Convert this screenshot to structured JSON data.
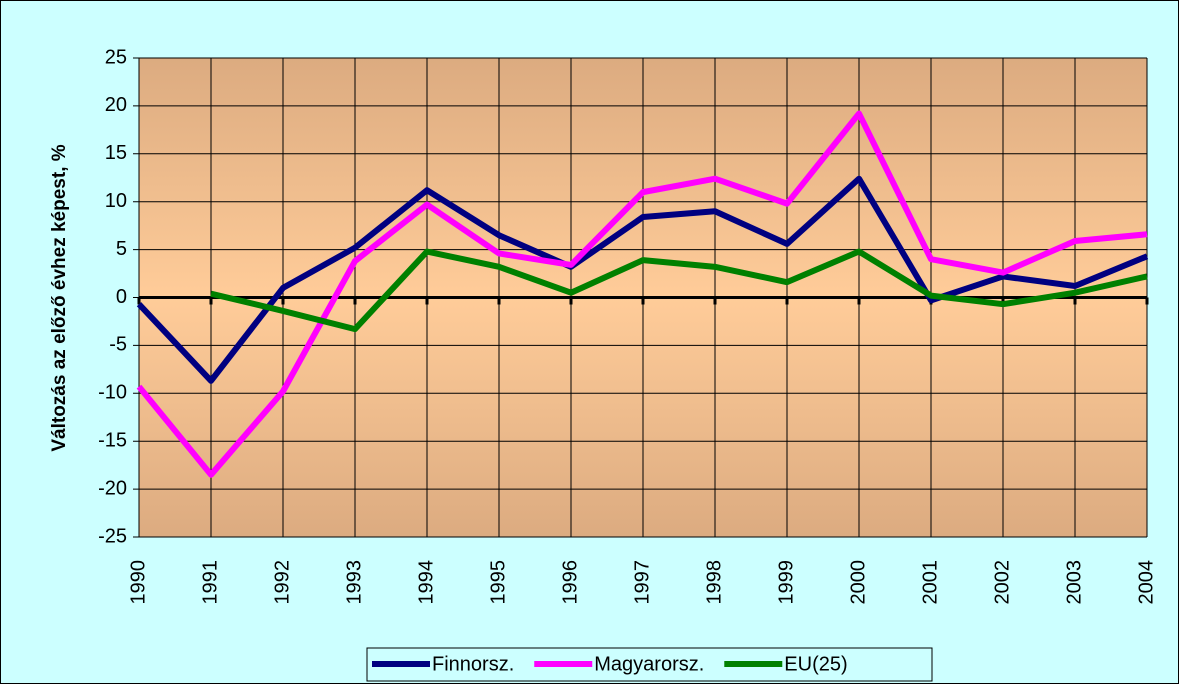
{
  "chart_data": {
    "type": "line",
    "ylabel": "Változás az előző évhez képest, %",
    "categories": [
      "1990",
      "1991",
      "1992",
      "1993",
      "1994",
      "1995",
      "1996",
      "1997",
      "1998",
      "1999",
      "2000",
      "2001",
      "2002",
      "2003",
      "2004"
    ],
    "series": [
      {
        "name": "Finnorsz.",
        "color": "#000080",
        "values": [
          -0.7,
          -8.7,
          1.0,
          5.2,
          11.2,
          6.5,
          3.2,
          8.4,
          9.0,
          5.6,
          12.4,
          -0.3,
          2.2,
          1.2,
          4.3
        ]
      },
      {
        "name": "Magyarorsz.",
        "color": "#ff00ff",
        "values": [
          -9.3,
          -18.5,
          -9.8,
          3.8,
          9.7,
          4.6,
          3.4,
          11.0,
          12.4,
          9.8,
          19.2,
          4.0,
          2.6,
          5.9,
          6.6
        ]
      },
      {
        "name": "EU(25)",
        "color": "#008000",
        "values": [
          null,
          0.4,
          -1.4,
          -3.3,
          4.8,
          3.2,
          0.5,
          3.9,
          3.2,
          1.6,
          4.8,
          0.2,
          -0.7,
          0.5,
          2.2
        ]
      }
    ],
    "ylim": [
      -25,
      25
    ],
    "yticks": [
      -25,
      -20,
      -15,
      -10,
      -5,
      0,
      5,
      10,
      15,
      20,
      25
    ],
    "grid": true,
    "legend": "bottom"
  }
}
